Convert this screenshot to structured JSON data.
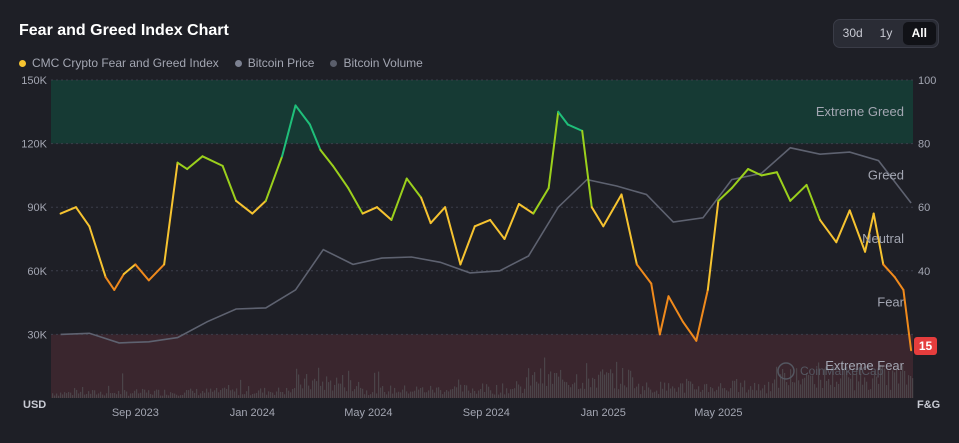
{
  "header": {
    "title": "Fear and Greed Index Chart",
    "range_tabs": [
      {
        "label": "30d",
        "active": false
      },
      {
        "label": "1y",
        "active": false
      },
      {
        "label": "All",
        "active": true
      }
    ]
  },
  "legend": [
    {
      "label": "CMC Crypto Fear and Greed Index",
      "color": "#f6c330"
    },
    {
      "label": "Bitcoin Price",
      "color": "#7c8191"
    },
    {
      "label": "Bitcoin Volume",
      "color": "#5a5e6b"
    }
  ],
  "colors": {
    "background": "#1e1f26",
    "extreme_greed_band": "#163a34",
    "extreme_fear_band": "#3a262e",
    "extreme_fear": "#e53d3d",
    "fear": "#f08a1c",
    "neutral": "#f6c330",
    "greed": "#9bd01c",
    "extreme_greed": "#1fbf7a",
    "price_line": "#5e6270",
    "volume_bars": "#4b4449"
  },
  "watermark": "CoinMarketCap",
  "chart_data": {
    "type": "line",
    "left_axis_label": "USD",
    "right_axis_label": "F&G",
    "left_ticks": [
      "150K",
      "120K",
      "90K",
      "60K",
      "30K"
    ],
    "left_ylim": [
      0,
      150000
    ],
    "right_ticks": [
      "100",
      "80",
      "60",
      "40"
    ],
    "right_ylim": [
      0,
      100
    ],
    "x_ticks": [
      "Sep 2023",
      "Jan 2024",
      "May 2024",
      "Sep 2024",
      "Jan 2025",
      "May 2025"
    ],
    "zone_labels": [
      "Extreme Greed",
      "Greed",
      "Neutral",
      "Fear",
      "Extreme Fear"
    ],
    "current_value": "15",
    "series": [
      {
        "name": "CMC Crypto Fear and Greed Index",
        "dates": [
          "2023-06-15",
          "2023-07-01",
          "2023-07-15",
          "2023-08-01",
          "2023-08-10",
          "2023-08-20",
          "2023-09-01",
          "2023-09-15",
          "2023-10-01",
          "2023-10-15",
          "2023-10-25",
          "2023-11-10",
          "2023-12-01",
          "2023-12-15",
          "2024-01-01",
          "2024-01-15",
          "2024-02-01",
          "2024-02-15",
          "2024-03-01",
          "2024-03-12",
          "2024-03-25",
          "2024-04-10",
          "2024-04-25",
          "2024-05-10",
          "2024-05-25",
          "2024-06-10",
          "2024-06-25",
          "2024-07-05",
          "2024-07-20",
          "2024-08-05",
          "2024-08-20",
          "2024-09-05",
          "2024-09-20",
          "2024-10-05",
          "2024-10-20",
          "2024-11-05",
          "2024-11-15",
          "2024-11-25",
          "2024-12-10",
          "2024-12-20",
          "2025-01-01",
          "2025-01-20",
          "2025-02-05",
          "2025-02-20",
          "2025-03-01",
          "2025-03-10",
          "2025-03-25",
          "2025-04-08",
          "2025-04-20",
          "2025-05-01",
          "2025-05-15",
          "2025-06-01",
          "2025-06-15",
          "2025-07-01",
          "2025-07-15",
          "2025-08-01",
          "2025-08-15",
          "2025-09-01",
          "2025-09-15",
          "2025-10-01",
          "2025-10-10",
          "2025-10-20",
          "2025-11-01",
          "2025-11-10",
          "2025-11-18"
        ],
        "values": [
          58,
          60,
          54,
          38,
          34,
          39,
          42,
          37,
          42,
          74,
          72,
          76,
          73,
          62,
          58,
          62,
          76,
          92,
          86,
          78,
          73,
          66,
          58,
          60,
          56,
          69,
          63,
          55,
          60,
          42,
          54,
          56,
          50,
          61,
          58,
          66,
          90,
          86,
          84,
          60,
          54,
          64,
          42,
          36,
          20,
          32,
          24,
          18,
          34,
          62,
          66,
          72,
          70,
          71,
          62,
          67,
          56,
          49,
          59,
          46,
          58,
          42,
          38,
          34,
          15
        ]
      },
      {
        "name": "Bitcoin Price",
        "dates": [
          "2023-06-15",
          "2023-07-15",
          "2023-08-15",
          "2023-09-15",
          "2023-10-15",
          "2023-11-15",
          "2023-12-15",
          "2024-01-15",
          "2024-02-15",
          "2024-03-15",
          "2024-04-15",
          "2024-05-15",
          "2024-06-15",
          "2024-07-15",
          "2024-08-15",
          "2024-09-15",
          "2024-10-15",
          "2024-11-15",
          "2024-12-15",
          "2025-01-15",
          "2025-02-15",
          "2025-03-15",
          "2025-04-15",
          "2025-05-15",
          "2025-06-15",
          "2025-07-15",
          "2025-08-15",
          "2025-09-15",
          "2025-10-15",
          "2025-11-18"
        ],
        "values": [
          30000,
          30500,
          26000,
          26500,
          28500,
          36000,
          42000,
          42500,
          51000,
          70000,
          63000,
          66000,
          66500,
          64000,
          59000,
          60000,
          67000,
          90000,
          103000,
          100000,
          96000,
          83000,
          85000,
          103000,
          106000,
          118000,
          115000,
          116000,
          112000,
          92000
        ]
      }
    ]
  }
}
